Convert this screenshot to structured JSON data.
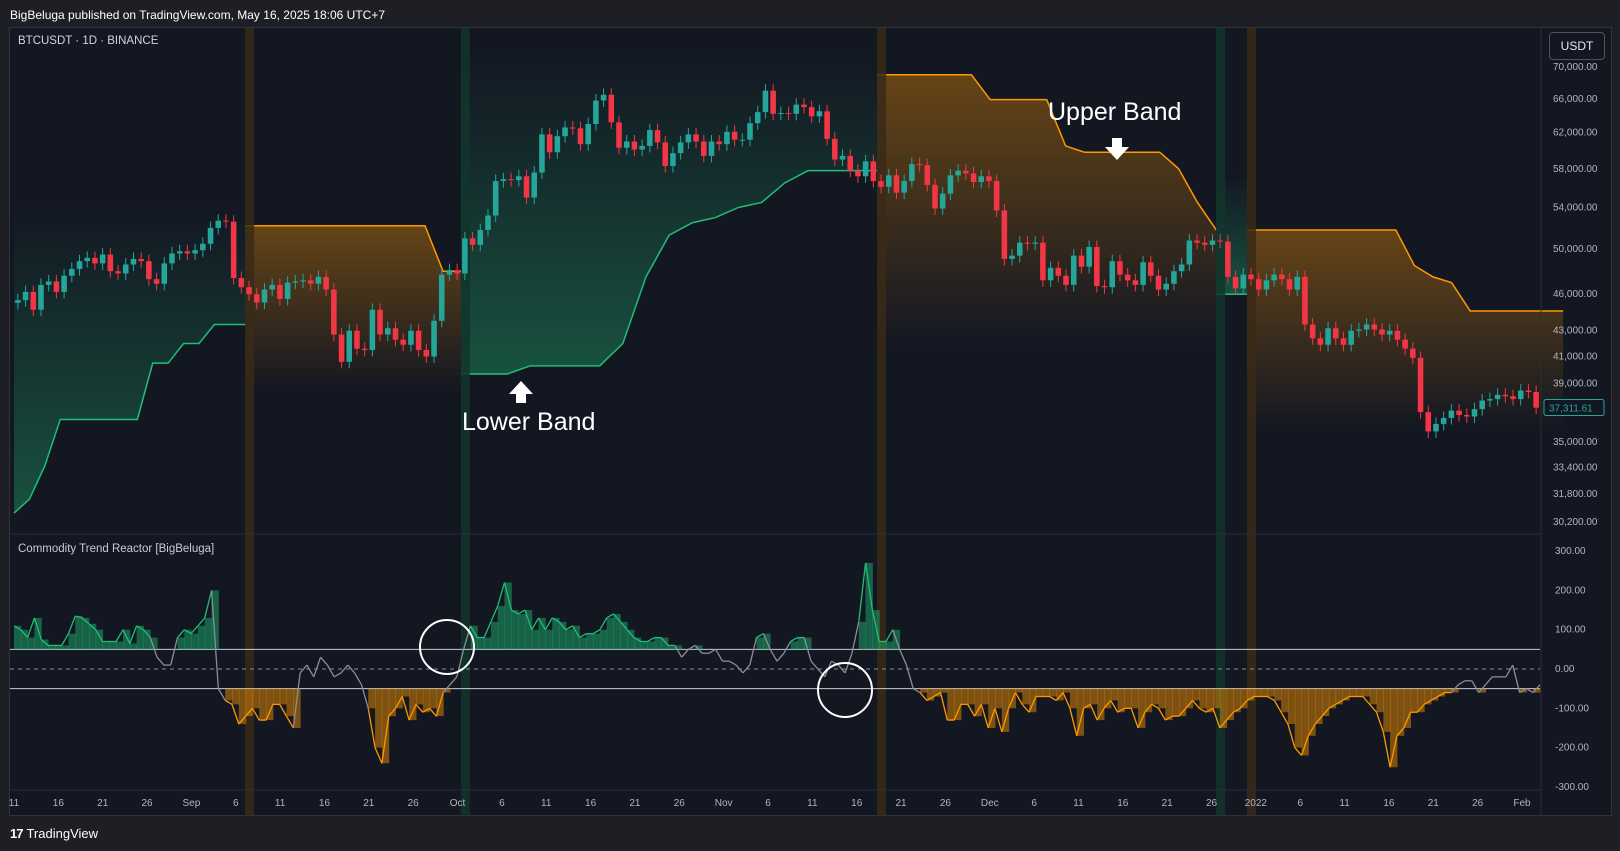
{
  "header": {
    "published_text": "BigBeluga published on TradingView.com, May 16, 2025 18:06 UTC+7"
  },
  "main_chart": {
    "symbol_label": "BTCUSDT · 1D · BINANCE",
    "currency_button": "USDT",
    "last_price_label": "37,311.61"
  },
  "indicator_pane": {
    "title": "Commodity Trend Reactor [BigBeluga]"
  },
  "annotations": {
    "upper_band": "Upper Band",
    "lower_band": "Lower Band"
  },
  "footer": {
    "brand": "TradingView"
  },
  "chart_data": [
    {
      "type": "candlestick",
      "title": "BTCUSDT · 1D · BINANCE",
      "price_axis_ticks": [
        "70,000.00",
        "66,000.00",
        "62,000.00",
        "58,000.00",
        "54,000.00",
        "50,000.00",
        "46,000.00",
        "43,000.00",
        "41,000.00",
        "39,000.00",
        "35,000.00",
        "33,400.00",
        "31,800.00",
        "30,200.00"
      ],
      "price_axis_values": [
        70000,
        66000,
        62000,
        58000,
        54000,
        50000,
        46000,
        43000,
        41000,
        39000,
        35000,
        33400,
        31800,
        30200
      ],
      "scale": "log",
      "time_axis_ticks": [
        "11",
        "16",
        "21",
        "26",
        "Sep",
        "6",
        "11",
        "16",
        "21",
        "26",
        "Oct",
        "6",
        "11",
        "16",
        "21",
        "26",
        "Nov",
        "6",
        "11",
        "16",
        "21",
        "26",
        "Dec",
        "6",
        "11",
        "16",
        "21",
        "26",
        "2022",
        "6",
        "11",
        "16",
        "21",
        "26",
        "Feb"
      ],
      "close_approx": [
        45500,
        46200,
        44700,
        46800,
        47100,
        46200,
        47600,
        48200,
        48900,
        49200,
        48700,
        49500,
        48000,
        47800,
        48600,
        49100,
        48900,
        47300,
        46900,
        48700,
        49600,
        49800,
        49600,
        49900,
        50500,
        52000,
        52700,
        52600,
        47400,
        46600,
        46000,
        45300,
        46400,
        46800,
        45600,
        47000,
        47100,
        47200,
        46900,
        47500,
        46400,
        42700,
        40600,
        43000,
        41600,
        41500,
        44700,
        42700,
        43200,
        42300,
        41900,
        43000,
        41500,
        41000,
        43800,
        47700,
        48100,
        47800,
        51000,
        50400,
        51800,
        53200,
        56700,
        56900,
        56800,
        57200,
        55000,
        57600,
        61800,
        59800,
        61600,
        62600,
        62500,
        60700,
        63000,
        65800,
        66500,
        63200,
        60300,
        61000,
        60100,
        60500,
        62300,
        60900,
        58300,
        59700,
        60900,
        61800,
        61000,
        59400,
        61000,
        60700,
        62100,
        61200,
        61200,
        63100,
        64400,
        67000,
        64200,
        64300,
        64200,
        65300,
        65000,
        63900,
        64500,
        61300,
        59000,
        59400,
        57800,
        57200,
        58800,
        56700,
        56100,
        57300,
        55500,
        56700,
        58500,
        58400,
        56300,
        53900,
        55400,
        57300,
        57800,
        57500,
        56600,
        57200,
        56700,
        53700,
        49100,
        49400,
        50600,
        50500,
        50600,
        47200,
        48300,
        47600,
        46800,
        49400,
        48400,
        50200,
        46700,
        46600,
        48900,
        47700,
        47200,
        46800,
        48800,
        47600,
        46400,
        46900,
        48000,
        48600,
        50800,
        50600,
        50400,
        50800,
        50700,
        47500,
        46500,
        47700,
        47300,
        46400,
        47200,
        47700,
        47300,
        46400,
        47500,
        43500,
        42400,
        41900,
        43200,
        42400,
        41900,
        43000,
        43100,
        43500,
        43100,
        42700,
        43000,
        42300,
        41600,
        40900,
        37000,
        35700,
        36200,
        36600,
        37100,
        36800,
        36700,
        37200,
        37800,
        37900,
        38200,
        38100,
        37900,
        38500,
        38400,
        37300
      ]
    },
    {
      "type": "line",
      "title": "Commodity Trend Reactor [BigBeluga]",
      "y_axis_ticks": [
        "300.00",
        "200.00",
        "100.00",
        "0.00",
        "-100.00",
        "-200.00",
        "-300.00"
      ],
      "y_values": [
        300,
        200,
        100,
        0,
        -100,
        -200,
        -300
      ],
      "threshold_levels": [
        50,
        -50
      ],
      "series_values_approx": [
        110,
        100,
        80,
        130,
        75,
        60,
        60,
        60,
        90,
        135,
        130,
        115,
        100,
        70,
        70,
        70,
        100,
        65,
        110,
        100,
        80,
        30,
        10,
        10,
        80,
        100,
        90,
        110,
        130,
        200,
        -50,
        -80,
        -90,
        -140,
        -120,
        -100,
        -130,
        -130,
        -90,
        -90,
        -120,
        -150,
        -10,
        10,
        -20,
        30,
        10,
        -20,
        -10,
        10,
        -10,
        -40,
        -100,
        -200,
        -240,
        -120,
        -100,
        -70,
        -130,
        -90,
        -110,
        -100,
        -120,
        -60,
        -40,
        -20,
        50,
        110,
        80,
        80,
        120,
        160,
        220,
        150,
        140,
        150,
        100,
        130,
        100,
        130,
        120,
        100,
        110,
        80,
        90,
        90,
        100,
        130,
        140,
        120,
        100,
        80,
        70,
        70,
        80,
        80,
        60,
        60,
        30,
        50,
        60,
        40,
        40,
        50,
        20,
        20,
        10,
        -10,
        10,
        80,
        90,
        50,
        20,
        40,
        70,
        80,
        80,
        20,
        0,
        -20,
        20,
        10,
        -10,
        40,
        120,
        270,
        150,
        70,
        70,
        100,
        50,
        10,
        -50,
        -60,
        -80,
        -70,
        -60,
        -130,
        -130,
        -90,
        -90,
        -120,
        -90,
        -150,
        -100,
        -160,
        -100,
        -60,
        -90,
        -110,
        -70,
        -70,
        -70,
        -80,
        -60,
        -100,
        -170,
        -100,
        -90,
        -130,
        -100,
        -80,
        -110,
        -100,
        -100,
        -150,
        -110,
        -90,
        -100,
        -130,
        -120,
        -120,
        -100,
        -80,
        -100,
        -110,
        -100,
        -150,
        -130,
        -110,
        -100,
        -80,
        -70,
        -70,
        -70,
        -80,
        -110,
        -140,
        -200,
        -220,
        -170,
        -140,
        -120,
        -100,
        -90,
        -80,
        -70,
        -70,
        -70,
        -90,
        -110,
        -160,
        -250,
        -170,
        -150,
        -110,
        -110,
        -90,
        -80,
        -70,
        -60,
        -60,
        -40,
        -30,
        -30,
        -60,
        -40,
        -20,
        -20,
        -20,
        10,
        -60,
        -50,
        -60,
        -40
      ]
    }
  ],
  "colors": {
    "background": "#131722",
    "bull": "#26a69a",
    "bear": "#f23645",
    "upper_band": "#ff9800",
    "lower_band": "#1fbf75",
    "axis_text": "#b2b5be"
  }
}
